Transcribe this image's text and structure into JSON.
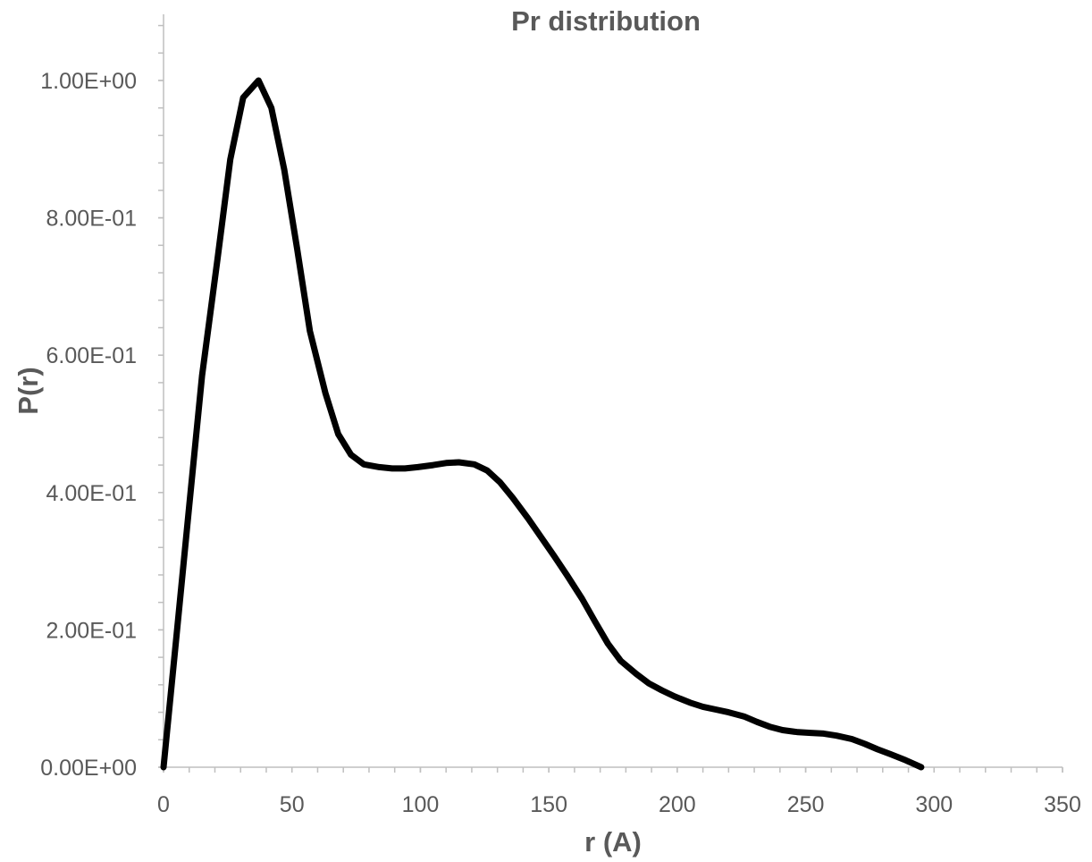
{
  "chart_data": {
    "type": "line",
    "title": "Pr distribution",
    "xlabel": "r (A)",
    "ylabel": "P(r)",
    "xlim": [
      0,
      350
    ],
    "ylim": [
      0,
      1.0
    ],
    "x_major_ticks": [
      0,
      50,
      100,
      150,
      200,
      250,
      300,
      350
    ],
    "x_tick_labels": [
      "0",
      "50",
      "100",
      "150",
      "200",
      "250",
      "300",
      "350"
    ],
    "x_minor_step": 10,
    "y_major_ticks": [
      0,
      0.2,
      0.4,
      0.6,
      0.8,
      1.0
    ],
    "y_tick_labels": [
      "0.00E+00",
      "2.00E-01",
      "4.00E-01",
      "6.00E-01",
      "8.00E-01",
      "1.00E+00"
    ],
    "y_minor_step": 0.04,
    "grid": false,
    "legend": "none",
    "series": [
      {
        "color": "#000000",
        "x": [
          0,
          5,
          10,
          15,
          21,
          26,
          31,
          37,
          42,
          47,
          52,
          57,
          63,
          68,
          73,
          78,
          84,
          89,
          94,
          99,
          105,
          110,
          115,
          121,
          126,
          131,
          136,
          142,
          147,
          152,
          157,
          163,
          168,
          173,
          178,
          184,
          189,
          194,
          199,
          205,
          210,
          215,
          220,
          226,
          231,
          236,
          241,
          247,
          252,
          257,
          262,
          268,
          273,
          278,
          283,
          289,
          295
        ],
        "values": [
          0.0,
          0.19,
          0.38,
          0.57,
          0.74,
          0.885,
          0.975,
          1.0,
          0.96,
          0.87,
          0.755,
          0.635,
          0.545,
          0.485,
          0.455,
          0.441,
          0.437,
          0.435,
          0.435,
          0.437,
          0.44,
          0.443,
          0.444,
          0.441,
          0.432,
          0.415,
          0.392,
          0.362,
          0.335,
          0.308,
          0.28,
          0.245,
          0.212,
          0.18,
          0.155,
          0.136,
          0.122,
          0.112,
          0.103,
          0.094,
          0.088,
          0.084,
          0.08,
          0.074,
          0.066,
          0.059,
          0.054,
          0.051,
          0.05,
          0.049,
          0.046,
          0.041,
          0.034,
          0.026,
          0.019,
          0.01,
          0.0
        ]
      }
    ]
  }
}
